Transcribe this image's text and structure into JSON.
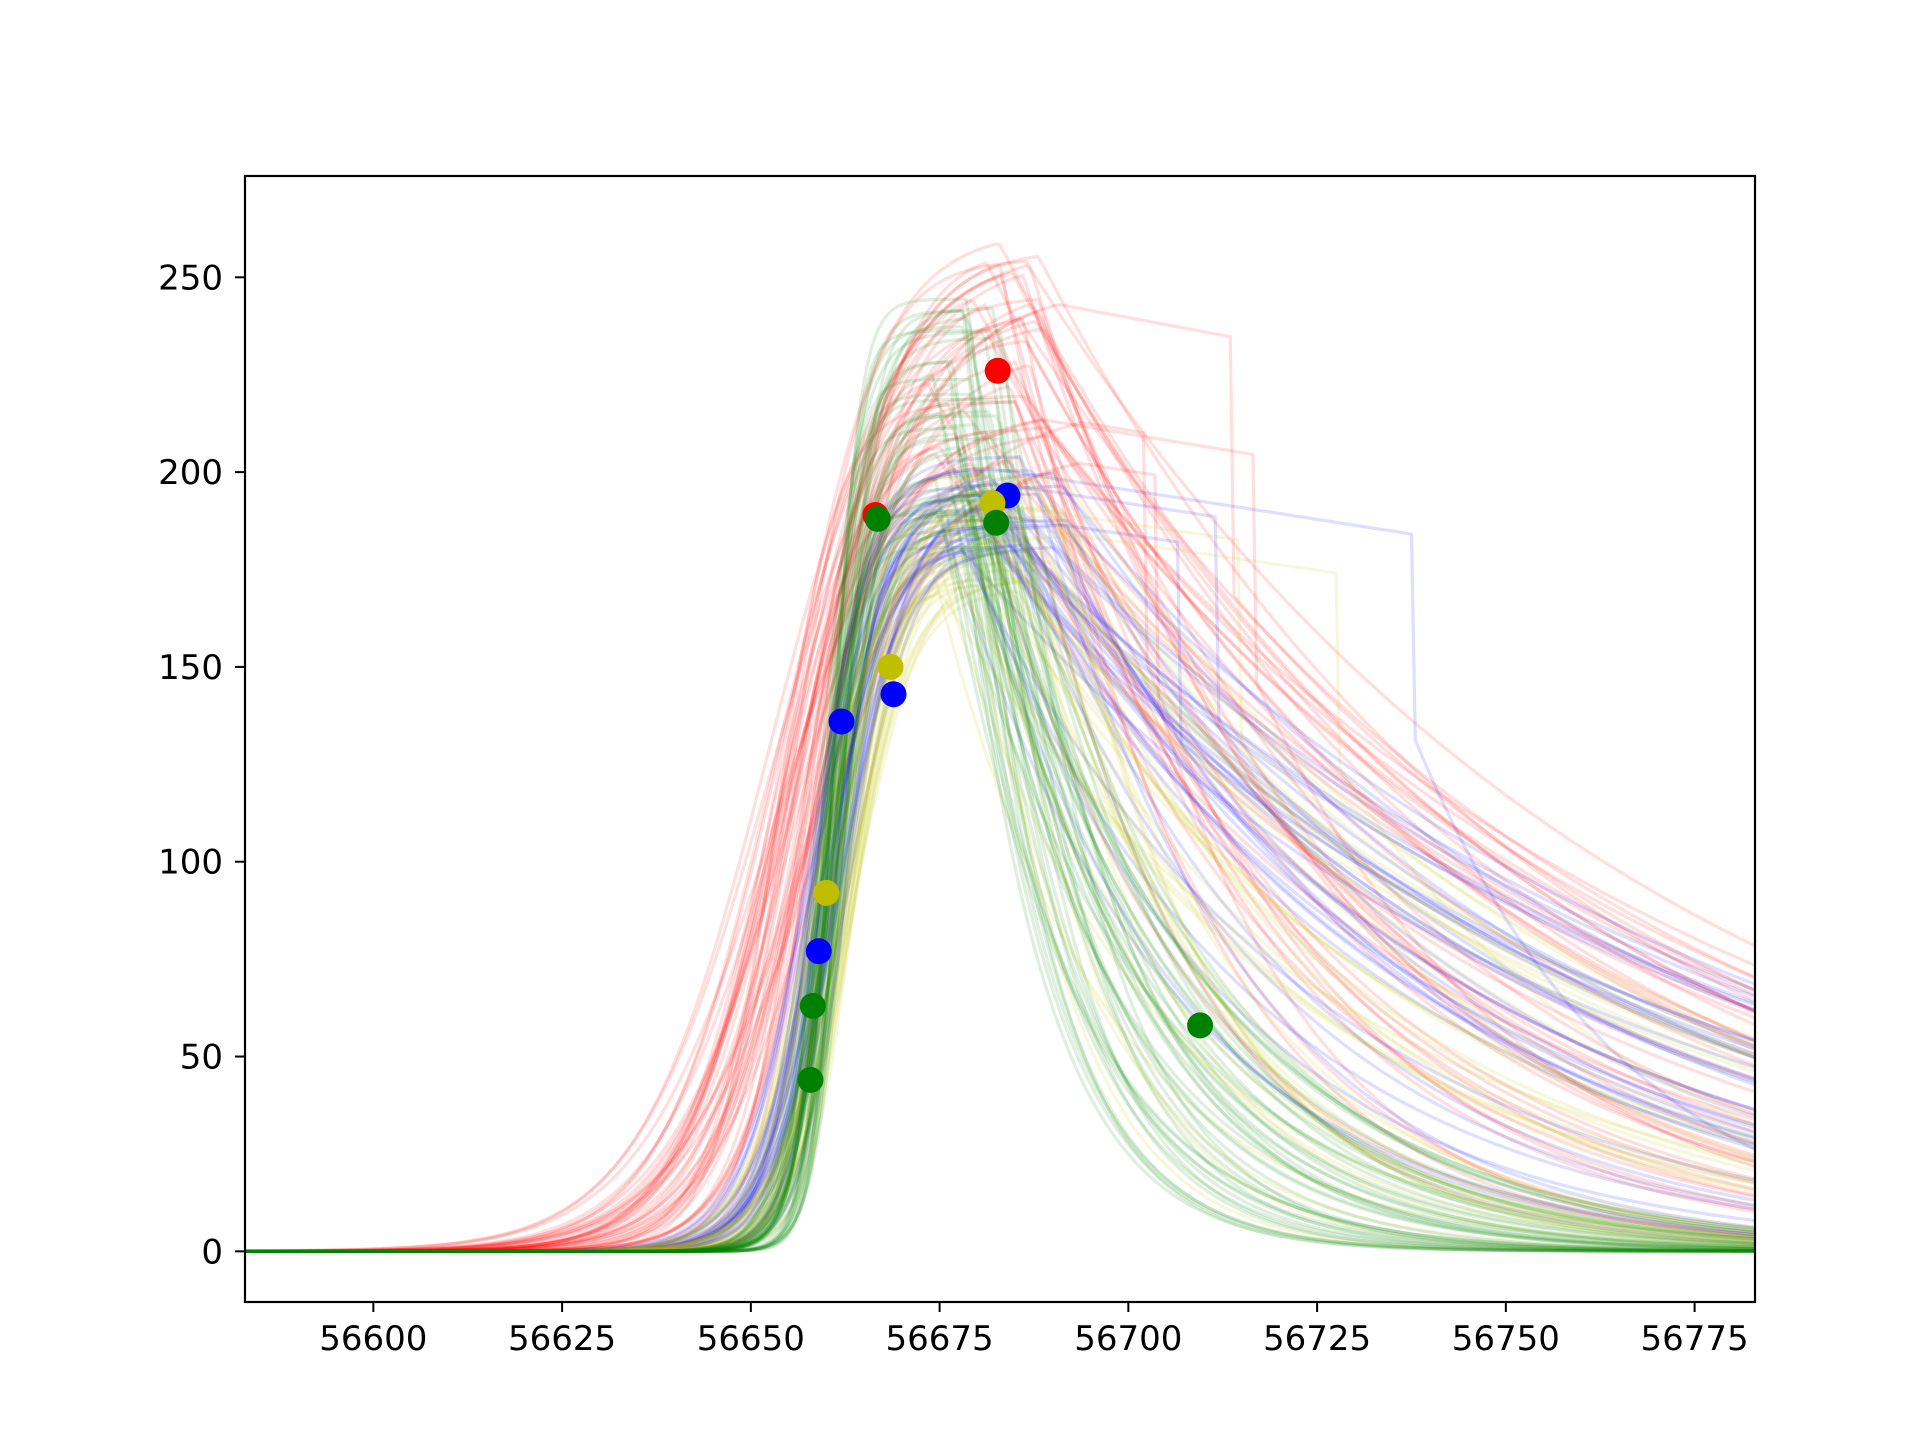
{
  "chart_data": {
    "type": "line",
    "title": "",
    "xlabel": "",
    "ylabel": "",
    "xlim": [
      56583,
      56783
    ],
    "ylim": [
      -13,
      276
    ],
    "x_ticks": [
      56600,
      56625,
      56650,
      56675,
      56700,
      56725,
      56750,
      56775
    ],
    "y_ticks": [
      0,
      50,
      100,
      150,
      200,
      250
    ],
    "grid": false,
    "legend": "none",
    "model_curves": {
      "line_alpha": 0.13,
      "line_style": "thin translucent light-curve fits, one bundle per band",
      "bands": [
        {
          "color": "#ff0000",
          "count": 45,
          "peak_mjd_range": [
            56672,
            56690
          ],
          "peak_flux_range": [
            200,
            262
          ],
          "rise_width_range": [
            3.5,
            9.0
          ],
          "decay_tau_range": [
            20,
            90
          ],
          "rise_center_range": [
            56652,
            56660
          ],
          "plateau_curves": 4
        },
        {
          "color": "#0000ff",
          "count": 40,
          "peak_mjd_range": [
            56676,
            56692
          ],
          "peak_flux_range": [
            180,
            205
          ],
          "rise_width_range": [
            2.8,
            5.0
          ],
          "decay_tau_range": [
            25,
            95
          ],
          "rise_center_range": [
            56657,
            56663
          ],
          "plateau_curves": 3
        },
        {
          "color": "#bfbf00",
          "count": 40,
          "peak_mjd_range": [
            56674,
            56692
          ],
          "peak_flux_range": [
            170,
            200
          ],
          "rise_width_range": [
            2.5,
            5.0
          ],
          "decay_tau_range": [
            8,
            80
          ],
          "rise_center_range": [
            56658,
            56664
          ],
          "plateau_curves": 2
        },
        {
          "color": "#008000",
          "count": 45,
          "peak_mjd_range": [
            56674,
            56684
          ],
          "peak_flux_range": [
            180,
            248
          ],
          "rise_width_range": [
            1.6,
            3.0
          ],
          "decay_tau_range": [
            10,
            30
          ],
          "rise_center_range": [
            56659,
            56663
          ],
          "plateau_curves": 0
        }
      ]
    },
    "observations": [
      {
        "band": "r",
        "color": "#ff0000",
        "points": [
          [
            56666.5,
            189
          ],
          [
            56682.7,
            226
          ]
        ]
      },
      {
        "band": "b",
        "color": "#0000ff",
        "points": [
          [
            56659.0,
            77
          ],
          [
            56662.0,
            136
          ],
          [
            56668.9,
            143
          ],
          [
            56684.0,
            194
          ]
        ]
      },
      {
        "band": "y",
        "color": "#bfbf00",
        "points": [
          [
            56660.0,
            92
          ],
          [
            56668.5,
            150
          ],
          [
            56682.0,
            192
          ]
        ]
      },
      {
        "band": "g",
        "color": "#008000",
        "points": [
          [
            56657.9,
            44
          ],
          [
            56658.2,
            63
          ],
          [
            56666.8,
            188
          ],
          [
            56682.5,
            187
          ],
          [
            56709.5,
            58
          ]
        ]
      }
    ]
  }
}
